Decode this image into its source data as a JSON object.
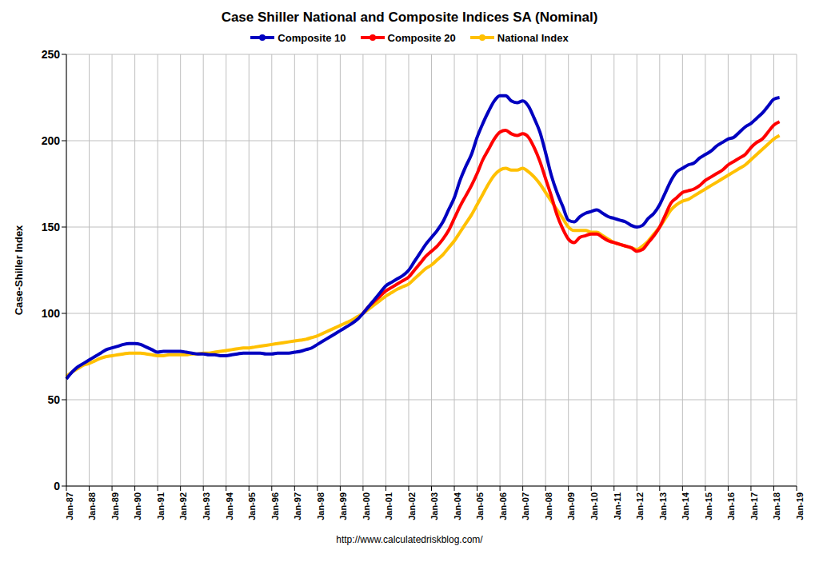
{
  "chart_data": {
    "type": "line",
    "title": "Case Shiller National and Composite Indices SA (Nominal)",
    "y_label": "Case-Shiller Index",
    "annotations": [
      "http://www.calculatedriskblog.com/"
    ],
    "legend": "top",
    "grid": true,
    "categories": [
      "Jan-87",
      null,
      null,
      null,
      "Jan-88",
      null,
      null,
      null,
      "Jan-89",
      null,
      null,
      null,
      "Jan-90",
      null,
      null,
      null,
      "Jan-91",
      null,
      null,
      null,
      "Jan-92",
      null,
      null,
      null,
      "Jan-93",
      null,
      null,
      null,
      "Jan-94",
      null,
      null,
      null,
      "Jan-95",
      null,
      null,
      null,
      "Jan-96",
      null,
      null,
      null,
      "Jan-97",
      null,
      null,
      null,
      "Jan-98",
      null,
      null,
      null,
      "Jan-99",
      null,
      null,
      null,
      "Jan-00",
      null,
      null,
      null,
      "Jan-01",
      null,
      null,
      null,
      "Jan-02",
      null,
      null,
      null,
      "Jan-03",
      null,
      null,
      null,
      "Jan-04",
      null,
      null,
      null,
      "Jan-05",
      null,
      null,
      null,
      "Jan-06",
      null,
      null,
      null,
      "Jan-07",
      null,
      null,
      null,
      "Jan-08",
      null,
      null,
      null,
      "Jan-09",
      null,
      null,
      null,
      "Jan-10",
      null,
      null,
      null,
      "Jan-11",
      null,
      null,
      null,
      "Jan-12",
      null,
      null,
      null,
      "Jan-13",
      null,
      null,
      null,
      "Jan-14",
      null,
      null,
      null,
      "Jan-15",
      null,
      null,
      null,
      "Jan-16",
      null,
      null,
      null,
      "Jan-17",
      null,
      null,
      null,
      "Jan-18",
      null,
      null,
      null,
      "Jan-19"
    ],
    "series": [
      {
        "name": "Composite 10",
        "color": "#0000c0",
        "values": [
          62,
          66,
          69,
          71,
          73,
          75,
          77,
          79,
          80,
          81,
          82,
          82.5,
          82.5,
          82,
          80.5,
          79,
          77.5,
          78,
          78,
          78,
          78,
          77.5,
          77,
          76.5,
          76.5,
          76,
          76,
          75.5,
          75.5,
          76,
          76.5,
          77,
          77,
          77,
          77,
          76.5,
          76.5,
          77,
          77,
          77,
          77.5,
          78,
          79,
          80,
          82,
          84,
          86,
          88,
          90,
          92,
          94,
          96.5,
          100,
          104,
          108,
          112,
          116,
          118,
          120,
          122,
          125,
          130,
          135,
          140,
          144,
          148,
          153,
          160,
          167,
          177,
          185,
          192,
          202,
          210,
          217,
          223,
          226,
          226,
          223,
          222,
          223,
          220,
          213,
          205,
          193,
          180,
          170,
          162,
          154,
          153,
          156,
          158,
          159,
          160,
          158,
          156,
          155,
          154,
          153,
          151,
          150,
          151,
          155,
          158,
          163,
          170,
          177,
          182,
          184,
          186,
          187,
          190,
          192,
          194,
          197,
          199,
          201,
          202,
          205,
          208,
          210,
          213,
          216,
          220,
          224,
          225,
          null,
          null,
          null
        ]
      },
      {
        "name": "Composite 20",
        "color": "#ff0000",
        "values": [
          null,
          null,
          null,
          null,
          null,
          null,
          null,
          null,
          null,
          null,
          null,
          null,
          null,
          null,
          null,
          null,
          null,
          null,
          null,
          null,
          null,
          null,
          null,
          null,
          null,
          null,
          null,
          null,
          null,
          null,
          null,
          null,
          null,
          null,
          null,
          null,
          null,
          null,
          null,
          null,
          null,
          null,
          null,
          null,
          null,
          null,
          null,
          null,
          null,
          null,
          null,
          null,
          100,
          104,
          107,
          110,
          113,
          115,
          117,
          119,
          121,
          125,
          129,
          133,
          136,
          139,
          143,
          148,
          155,
          162,
          168,
          174,
          181,
          189,
          195,
          201,
          205,
          206,
          204,
          203,
          204,
          202,
          196,
          188,
          178,
          168,
          157,
          149,
          143,
          141,
          144,
          145,
          146,
          146,
          144,
          142,
          141,
          140,
          139,
          138,
          136,
          137,
          141,
          145,
          150,
          157,
          164,
          167,
          170,
          171,
          172,
          174,
          177,
          179,
          181,
          183,
          186,
          188,
          190,
          192,
          196,
          199,
          201,
          205,
          209,
          211,
          null,
          null,
          null
        ]
      },
      {
        "name": "National Index",
        "color": "#ffc000",
        "values": [
          63.5,
          66,
          68,
          70,
          71,
          72.5,
          74,
          75,
          75.5,
          76,
          76.5,
          77,
          77,
          77,
          76.5,
          76,
          75.5,
          75.5,
          76,
          76,
          76,
          76,
          76.5,
          76.5,
          77,
          77,
          77.5,
          78,
          78.5,
          79,
          79.5,
          80,
          80,
          80.5,
          81,
          81.5,
          82,
          82.5,
          83,
          83.5,
          84,
          84.5,
          85,
          86,
          87,
          88.5,
          90,
          91.5,
          93,
          94.5,
          96,
          98,
          100,
          102.5,
          105,
          107.5,
          110,
          112,
          114,
          115.5,
          117,
          120,
          123,
          126,
          128,
          131,
          134,
          138,
          142,
          147,
          152,
          157,
          163,
          169,
          175,
          180,
          183,
          184,
          183,
          183,
          184,
          182,
          179,
          175,
          170,
          165,
          160,
          155,
          150,
          148,
          148,
          148,
          147,
          147,
          145,
          143,
          141,
          140,
          139,
          138,
          137,
          139,
          142,
          146,
          150,
          155,
          160,
          163,
          165,
          166,
          168,
          170,
          172,
          174,
          176,
          178,
          180,
          182,
          184,
          186,
          189,
          192,
          195,
          198,
          201,
          203,
          null,
          null,
          null
        ]
      }
    ],
    "ylim": [
      0,
      250
    ],
    "yticks": [
      0,
      50,
      100,
      150,
      200,
      250
    ]
  }
}
